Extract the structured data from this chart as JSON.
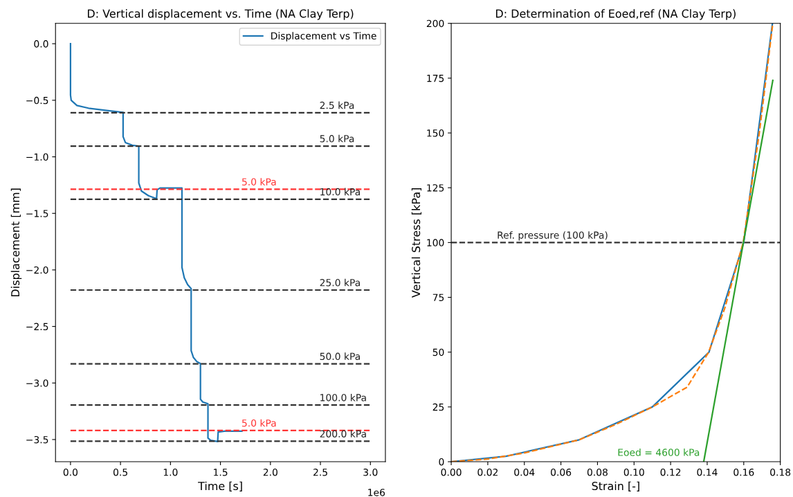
{
  "chart_data": [
    {
      "type": "line",
      "title": "D: Vertical displacement vs. Time (NA Clay Terp)",
      "xlabel": "Time [s]",
      "ylabel": "Displacement [mm]",
      "series": [
        {
          "name": "Displacement vs Time",
          "color": "#1f77b4",
          "x": [
            0,
            0,
            0.007,
            0.064,
            0.18,
            0.364,
            0.526,
            0.526,
            0.549,
            0.618,
            0.683,
            0.683,
            0.71,
            0.78,
            0.861,
            0.866,
            0.895,
            1.115,
            1.115,
            1.138,
            1.172,
            1.207,
            1.207,
            1.23,
            1.265,
            1.3,
            1.3,
            1.323,
            1.375,
            1.375,
            1.403,
            1.472,
            1.477,
            1.542,
            1.715
          ],
          "values": [
            0,
            -0.454,
            -0.5,
            -0.546,
            -0.57,
            -0.59,
            -0.607,
            -0.822,
            -0.874,
            -0.898,
            -0.906,
            -1.231,
            -1.303,
            -1.344,
            -1.37,
            -1.293,
            -1.276,
            -1.276,
            -1.978,
            -2.07,
            -2.131,
            -2.166,
            -2.714,
            -2.775,
            -2.812,
            -2.828,
            -3.144,
            -3.168,
            -3.184,
            -3.487,
            -3.507,
            -3.518,
            -3.434,
            -3.426,
            -3.426
          ]
        }
      ],
      "xlim": [
        -0.15,
        3.15
      ],
      "xticks": [
        {
          "value": 0,
          "label": "0.0"
        },
        0.5,
        {
          "value": 1,
          "label": "1.0"
        },
        1.5,
        {
          "value": 2,
          "label": "2.0"
        },
        2.5,
        {
          "value": 3,
          "label": "3.0"
        }
      ],
      "ylim": [
        -3.696,
        0.18
      ],
      "yticks": [
        {
          "value": 0,
          "label": "0.0"
        },
        {
          "value": -0.5,
          "label": "−0.5"
        },
        {
          "value": -1,
          "label": "−1.0"
        },
        {
          "value": -1.5,
          "label": "−1.5"
        },
        {
          "value": -2,
          "label": "−2.0"
        },
        {
          "value": -2.5,
          "label": "−2.5"
        },
        {
          "value": -3,
          "label": "−3.0"
        },
        {
          "value": -3.5,
          "label": "−3.5"
        }
      ],
      "ref_lines": [
        {
          "axis": "y",
          "value": -0.61,
          "color": "#333333",
          "line_style": "dashed"
        },
        {
          "axis": "y",
          "value": -0.905,
          "color": "#333333",
          "line_style": "dashed"
        },
        {
          "axis": "y",
          "value": -1.287,
          "color": "#ff3333",
          "line_style": "dashed"
        },
        {
          "axis": "y",
          "value": -1.375,
          "color": "#333333",
          "line_style": "dashed"
        },
        {
          "axis": "y",
          "value": -2.178,
          "color": "#333333",
          "line_style": "dashed"
        },
        {
          "axis": "y",
          "value": -2.83,
          "color": "#333333",
          "line_style": "dashed"
        },
        {
          "axis": "y",
          "value": -3.195,
          "color": "#333333",
          "line_style": "dashed"
        },
        {
          "axis": "y",
          "value": -3.42,
          "color": "#ff3333",
          "line_style": "dashed"
        },
        {
          "axis": "y",
          "value": -3.515,
          "color": "#333333",
          "line_style": "dashed"
        }
      ],
      "annotations": [
        {
          "text": "2.5 kPa",
          "x": 2.49,
          "y": -0.61
        },
        {
          "text": "5.0 kPa",
          "x": 2.49,
          "y": -0.905
        },
        {
          "text": "5.0 kPa",
          "x": 1.71,
          "y": -1.287
        },
        {
          "text": "10.0 kPa",
          "x": 2.49,
          "y": -1.375
        },
        {
          "text": "25.0 kPa",
          "x": 2.49,
          "y": -2.178
        },
        {
          "text": "50.0 kPa",
          "x": 2.49,
          "y": -2.83
        },
        {
          "text": "100.0 kPa",
          "x": 2.49,
          "y": -3.195
        },
        {
          "text": "5.0 kPa",
          "x": 1.71,
          "y": -3.42
        },
        {
          "text": "200.0 kPa",
          "x": 2.49,
          "y": -3.515
        },
        "1e6"
      ],
      "legend": "top right",
      "grid": false
    },
    {
      "type": "line",
      "title": "D: Determination of Eoed,ref (NA Clay Terp)",
      "xlabel": "Strain [-]",
      "ylabel": "Vertical Stress [kPa]",
      "series": [
        {
          "color": "#1f77b4",
          "x": [
            0,
            0.03,
            0.07,
            0.11,
            0.141,
            0.16,
            0.1757
          ],
          "values": [
            0,
            2.5,
            10,
            25,
            50,
            100,
            200
          ]
        },
        {
          "color": "#ff7f0e",
          "line_style": "dashed",
          "x": [
            0,
            0.02,
            0.04,
            0.07,
            0.09,
            0.11,
            0.129,
            0.1408,
            0.1496,
            0.1597,
            0.1685,
            0.1759
          ],
          "values": [
            0,
            1.2,
            4,
            10,
            17,
            25,
            34,
            50,
            70,
            100,
            150,
            200
          ]
        },
        {
          "name": "Eoed = 4600 kPa",
          "color": "#2ca02c",
          "x": [
            0.1381,
            0.1759
          ],
          "values": [
            0,
            174
          ]
        }
      ],
      "xlim": [
        0,
        0.18
      ],
      "xticks": [
        {
          "value": 0,
          "label": "0.00"
        },
        {
          "value": 0.02,
          "label": "0.02"
        },
        {
          "value": 0.04,
          "label": "0.04"
        },
        {
          "value": 0.06,
          "label": "0.06"
        },
        {
          "value": 0.08,
          "label": "0.08"
        },
        {
          "value": 0.1,
          "label": "0.10"
        },
        {
          "value": 0.12,
          "label": "0.12"
        },
        {
          "value": 0.14,
          "label": "0.14"
        },
        {
          "value": 0.16,
          "label": "0.16"
        },
        {
          "value": 0.18,
          "label": "0.18"
        }
      ],
      "ylim": [
        0,
        200
      ],
      "yticks": [
        0,
        25,
        50,
        75,
        100,
        125,
        150,
        175,
        200
      ],
      "ref_lines": [
        {
          "axis": "y",
          "value": 100,
          "color": "#333333",
          "line_style": "dashed"
        }
      ],
      "annotations": [
        {
          "text": "Ref. pressure (100 kPa)",
          "x": 0.025,
          "y": 100
        }
      ],
      "legend": false,
      "grid": false
    }
  ]
}
